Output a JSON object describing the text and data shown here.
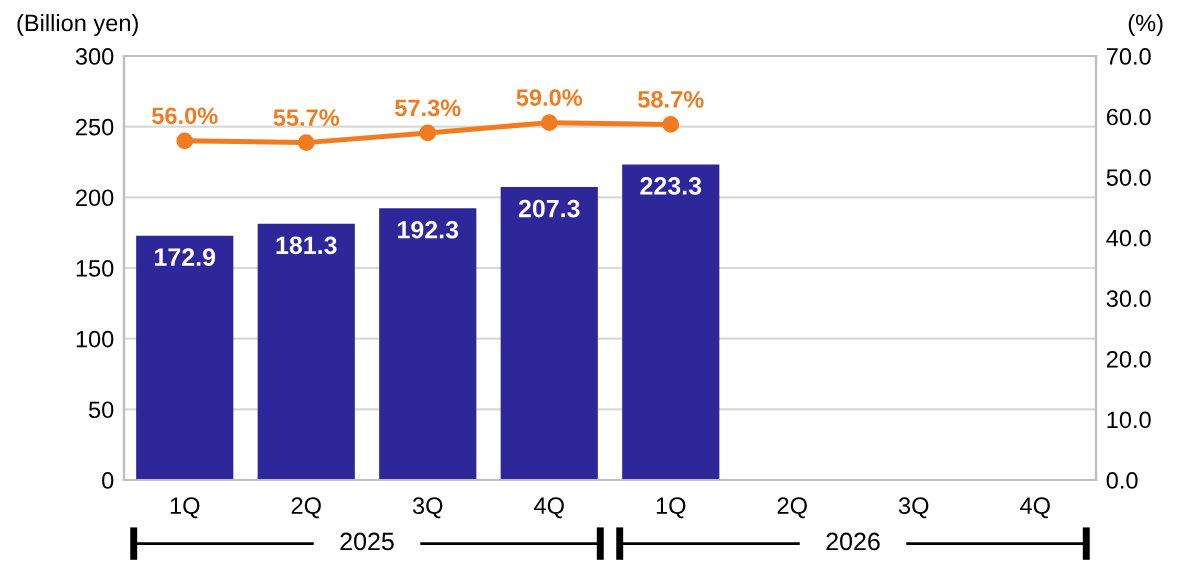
{
  "chart_data": {
    "type": "bar",
    "categories": [
      "1Q",
      "2Q",
      "3Q",
      "4Q",
      "1Q",
      "2Q",
      "3Q",
      "4Q"
    ],
    "ylabel": "(Billion yen)",
    "y2label": "(%)",
    "series": [
      {
        "color": "#2e2799",
        "values": [
          172.9,
          181.3,
          192.3,
          207.3,
          223.3,
          null,
          null,
          null
        ],
        "value_labels": [
          "172.9",
          "181.3",
          "192.3",
          "207.3",
          "223.3",
          null,
          null,
          null
        ]
      },
      {
        "type": "line",
        "axis": "y2",
        "color": "#f07b21",
        "marker": "circle",
        "values": [
          56.0,
          55.7,
          57.3,
          59.0,
          58.7,
          null,
          null,
          null
        ],
        "value_labels": [
          "56.0%",
          "55.7%",
          "57.3%",
          "59.0%",
          "58.7%",
          null,
          null,
          null
        ]
      }
    ],
    "ylim": [
      0,
      300
    ],
    "yticks": [
      0,
      50,
      100,
      150,
      200,
      250,
      300
    ],
    "y2lim": [
      0,
      70
    ],
    "y2ticks": [
      {
        "value": 0,
        "label": "0.0"
      },
      {
        "value": 10,
        "label": "10.0"
      },
      {
        "value": 20,
        "label": "20.0"
      },
      {
        "value": 30,
        "label": "30.0"
      },
      {
        "value": 40,
        "label": "40.0"
      },
      {
        "value": 50,
        "label": "50.0"
      },
      {
        "value": 60,
        "label": "60.0"
      },
      {
        "value": 70,
        "label": "70.0"
      }
    ],
    "annotations": [
      "2025",
      "2026"
    ],
    "grid": "y",
    "legend": false
  }
}
